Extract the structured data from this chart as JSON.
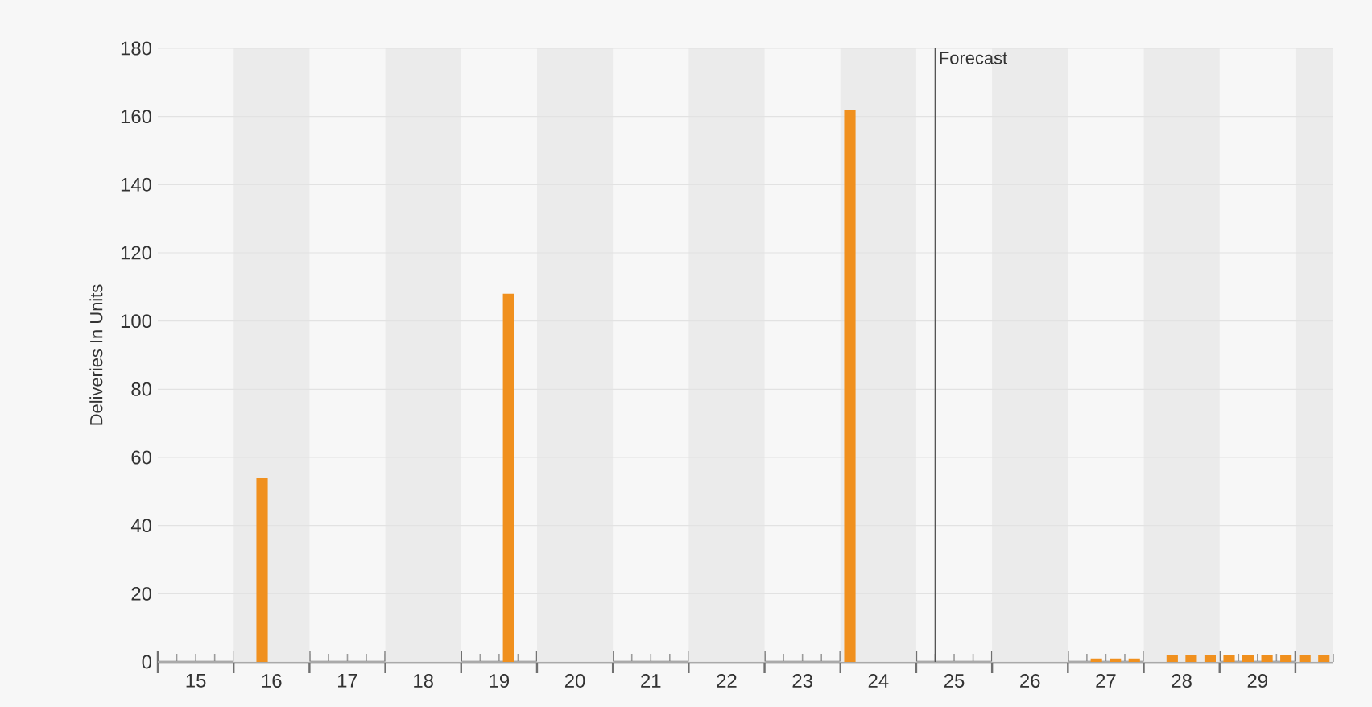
{
  "chart_data": {
    "type": "bar",
    "ylabel": "Deliveries In Units",
    "color": "#f0901e",
    "x": [
      16.375,
      19.625,
      24.125,
      27.375,
      27.625,
      27.875,
      28.375,
      28.625,
      28.875,
      29.125,
      29.375,
      29.625,
      29.875,
      30.125,
      30.375
    ],
    "values": [
      54,
      108,
      162,
      1,
      1,
      1,
      2,
      2,
      2,
      2,
      2,
      2,
      2,
      2,
      2
    ],
    "xlim": [
      15,
      30.5
    ],
    "ylim": [
      0,
      180
    ],
    "yticks": [
      0,
      20,
      40,
      60,
      80,
      100,
      120,
      140,
      160,
      180
    ],
    "xticks": [
      {
        "value": 15,
        "label": null
      },
      {
        "value": 15.25,
        "label": null
      },
      {
        "value": 15.5,
        "label": "15"
      },
      {
        "value": 15.75,
        "label": null
      },
      {
        "value": 16,
        "label": null
      },
      {
        "value": 16.25,
        "label": null
      },
      {
        "value": 16.5,
        "label": "16"
      },
      {
        "value": 16.75,
        "label": null
      },
      {
        "value": 17,
        "label": null
      },
      {
        "value": 17.25,
        "label": null
      },
      {
        "value": 17.5,
        "label": "17"
      },
      {
        "value": 17.75,
        "label": null
      },
      {
        "value": 18,
        "label": null
      },
      {
        "value": 18.25,
        "label": null
      },
      {
        "value": 18.5,
        "label": "18"
      },
      {
        "value": 18.75,
        "label": null
      },
      {
        "value": 19,
        "label": null
      },
      {
        "value": 19.25,
        "label": null
      },
      {
        "value": 19.5,
        "label": "19"
      },
      {
        "value": 19.75,
        "label": null
      },
      {
        "value": 20,
        "label": null
      },
      {
        "value": 20.25,
        "label": null
      },
      {
        "value": 20.5,
        "label": "20"
      },
      {
        "value": 20.75,
        "label": null
      },
      {
        "value": 21,
        "label": null
      },
      {
        "value": 21.25,
        "label": null
      },
      {
        "value": 21.5,
        "label": "21"
      },
      {
        "value": 21.75,
        "label": null
      },
      {
        "value": 22,
        "label": null
      },
      {
        "value": 22.25,
        "label": null
      },
      {
        "value": 22.5,
        "label": "22"
      },
      {
        "value": 22.75,
        "label": null
      },
      {
        "value": 23,
        "label": null
      },
      {
        "value": 23.25,
        "label": null
      },
      {
        "value": 23.5,
        "label": "23"
      },
      {
        "value": 23.75,
        "label": null
      },
      {
        "value": 24,
        "label": null
      },
      {
        "value": 24.25,
        "label": null
      },
      {
        "value": 24.5,
        "label": "24"
      },
      {
        "value": 24.75,
        "label": null
      },
      {
        "value": 25,
        "label": null
      },
      {
        "value": 25.25,
        "label": null
      },
      {
        "value": 25.5,
        "label": "25"
      },
      {
        "value": 25.75,
        "label": null
      },
      {
        "value": 26,
        "label": null
      },
      {
        "value": 26.25,
        "label": null
      },
      {
        "value": 26.5,
        "label": "26"
      },
      {
        "value": 26.75,
        "label": null
      },
      {
        "value": 27,
        "label": null
      },
      {
        "value": 27.25,
        "label": null
      },
      {
        "value": 27.5,
        "label": "27"
      },
      {
        "value": 27.75,
        "label": null
      },
      {
        "value": 28,
        "label": null
      },
      {
        "value": 28.25,
        "label": null
      },
      {
        "value": 28.5,
        "label": "28"
      },
      {
        "value": 28.75,
        "label": null
      },
      {
        "value": 29,
        "label": null
      },
      {
        "value": 29.25,
        "label": null
      },
      {
        "value": 29.5,
        "label": "29"
      },
      {
        "value": 29.75,
        "label": null
      },
      {
        "value": 30,
        "label": null
      },
      {
        "value": 30.25,
        "label": null
      },
      {
        "value": 30.5,
        "label": null
      }
    ],
    "grid": "y",
    "ref_lines": [
      {
        "axis": "x",
        "value": 25.25,
        "label": "Forecast",
        "color": "#555555"
      }
    ],
    "bands": [
      {
        "axis": "x",
        "from": 16,
        "to": 17,
        "color": "#ebebeb"
      },
      {
        "axis": "x",
        "from": 18,
        "to": 19,
        "color": "#ebebeb"
      },
      {
        "axis": "x",
        "from": 20,
        "to": 21,
        "color": "#ebebeb"
      },
      {
        "axis": "x",
        "from": 22,
        "to": 23,
        "color": "#ebebeb"
      },
      {
        "axis": "x",
        "from": 24,
        "to": 25,
        "color": "#ebebeb"
      },
      {
        "axis": "x",
        "from": 26,
        "to": 27,
        "color": "#ebebeb"
      },
      {
        "axis": "x",
        "from": 28,
        "to": 29,
        "color": "#ebebeb"
      },
      {
        "axis": "x",
        "from": 30,
        "to": 30.5,
        "color": "#ebebeb"
      }
    ]
  }
}
